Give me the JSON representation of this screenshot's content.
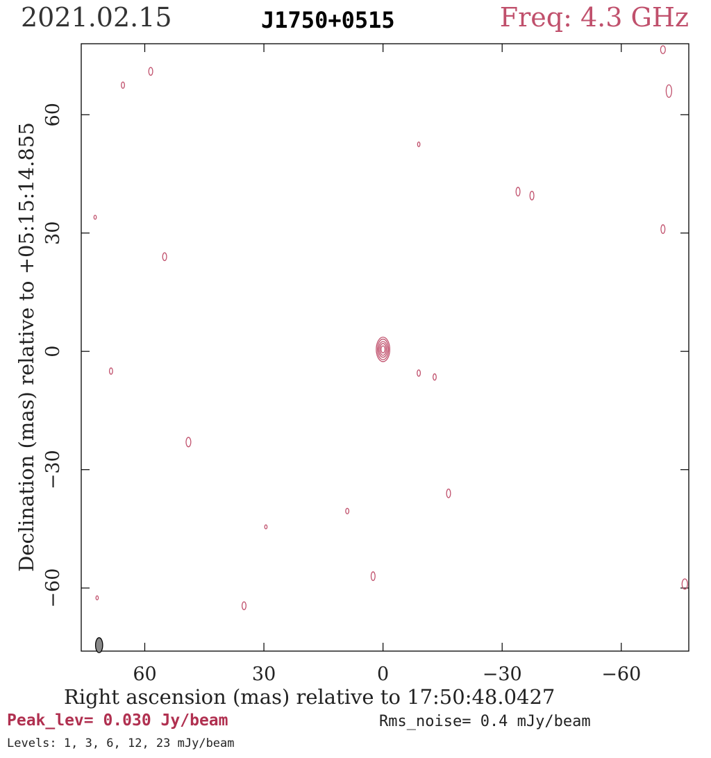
{
  "header": {
    "date": "2021.02.15",
    "source": "J1750+0515",
    "frequency": "Freq: 4.3 GHz"
  },
  "footer": {
    "peak": "Peak_lev=  0.030 Jy/beam",
    "rms": "Rms_noise=  0.4 mJy/beam",
    "levels": "Levels:   1,   3,   6,  12,  23 mJy/beam"
  },
  "colors": {
    "contour": "#c0506c",
    "beam_fill": "#888888",
    "axes": "#000000"
  },
  "chart_data": {
    "type": "contour map",
    "xlabel": "Right ascension (mas) relative to 17:50:48.0427",
    "ylabel": "Declination (mas) relative to +05:15:14.855",
    "xlim": [
      76,
      -77
    ],
    "ylim": [
      -76,
      78
    ],
    "xticks": [
      60,
      30,
      0,
      -30,
      -60
    ],
    "yticks": [
      60,
      30,
      0,
      -30,
      -60
    ],
    "tick_labels_x": [
      "60",
      "30",
      "0",
      "−30",
      "−60"
    ],
    "tick_labels_y": [
      "60",
      "30",
      "0",
      "−30",
      "−60"
    ],
    "contour_levels_mJy": [
      1,
      3,
      6,
      12,
      23
    ],
    "peak_Jy_per_beam": 0.03,
    "rms_mJy_per_beam": 0.4,
    "core": {
      "x": 0,
      "y": 0.5,
      "contours": [
        {
          "rx": 1.7,
          "ry": 3.1
        },
        {
          "rx": 1.4,
          "ry": 2.6
        },
        {
          "rx": 1.1,
          "ry": 2.0
        },
        {
          "rx": 0.8,
          "ry": 1.5
        },
        {
          "rx": 0.5,
          "ry": 0.9
        }
      ]
    },
    "noise_blobs": [
      {
        "x": 58.5,
        "y": 71,
        "rx": 0.5,
        "ry": 1.0
      },
      {
        "x": 65.5,
        "y": 67.5,
        "rx": 0.4,
        "ry": 0.8
      },
      {
        "x": 72.5,
        "y": 34,
        "rx": 0.3,
        "ry": 0.5
      },
      {
        "x": 55,
        "y": 24,
        "rx": 0.5,
        "ry": 1.0
      },
      {
        "x": 68.5,
        "y": -5,
        "rx": 0.4,
        "ry": 0.8
      },
      {
        "x": 49,
        "y": -23,
        "rx": 0.6,
        "ry": 1.2
      },
      {
        "x": 72,
        "y": -62.5,
        "rx": 0.3,
        "ry": 0.5
      },
      {
        "x": 35,
        "y": -64.5,
        "rx": 0.5,
        "ry": 1.0
      },
      {
        "x": 29.5,
        "y": -44.5,
        "rx": 0.3,
        "ry": 0.5
      },
      {
        "x": 9,
        "y": -40.5,
        "rx": 0.4,
        "ry": 0.7
      },
      {
        "x": 2.5,
        "y": -57,
        "rx": 0.5,
        "ry": 1.1
      },
      {
        "x": -9,
        "y": 52.5,
        "rx": 0.3,
        "ry": 0.6
      },
      {
        "x": -9,
        "y": -5.5,
        "rx": 0.4,
        "ry": 0.8
      },
      {
        "x": -13,
        "y": -6.5,
        "rx": 0.4,
        "ry": 0.8
      },
      {
        "x": -16.5,
        "y": -36,
        "rx": 0.5,
        "ry": 1.1
      },
      {
        "x": -34,
        "y": 40.5,
        "rx": 0.5,
        "ry": 1.1
      },
      {
        "x": -37.5,
        "y": 39.5,
        "rx": 0.5,
        "ry": 1.1
      },
      {
        "x": -70.5,
        "y": 76.5,
        "rx": 0.6,
        "ry": 1.0
      },
      {
        "x": -72,
        "y": 66,
        "rx": 0.7,
        "ry": 1.6
      },
      {
        "x": -70.5,
        "y": 31,
        "rx": 0.5,
        "ry": 1.1
      },
      {
        "x": -76,
        "y": -59,
        "rx": 0.7,
        "ry": 1.3
      }
    ],
    "beam": {
      "x": 71.5,
      "y": -74.5,
      "rx": 0.9,
      "ry": 1.9
    }
  }
}
